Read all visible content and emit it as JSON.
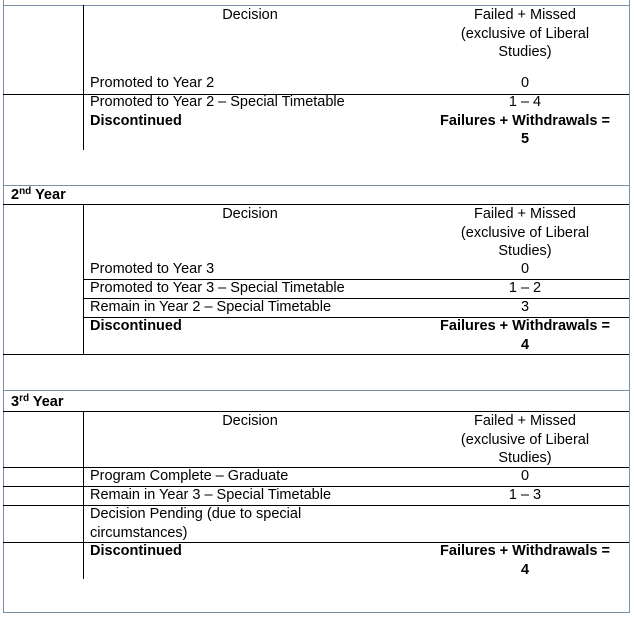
{
  "col_headers": {
    "decision": "Decision",
    "failed_missed": "Failed + Missed (exclusive of Liberal Studies)"
  },
  "year1": {
    "rows": [
      {
        "decision": "Promoted to Year 2",
        "value": "0"
      },
      {
        "decision": "Promoted to Year 2 – Special Timetable",
        "value": "1 – 4"
      }
    ],
    "discontinued": {
      "decision": "Discontinued",
      "value_line1": "Failures + Withdrawals =",
      "value_line2": "5"
    }
  },
  "year2": {
    "title_num": "2",
    "title_sup": "nd",
    "title_rest": " Year",
    "rows": [
      {
        "decision": "Promoted to Year 3",
        "value": "0"
      },
      {
        "decision": "Promoted to Year 3 – Special Timetable",
        "value": "1 – 2"
      },
      {
        "decision": "Remain in Year 2 – Special Timetable",
        "value": "3"
      }
    ],
    "discontinued": {
      "decision": "Discontinued",
      "value_line1": "Failures + Withdrawals =",
      "value_line2": "4"
    }
  },
  "year3": {
    "title_num": "3",
    "title_sup": "rd",
    "title_rest": " Year",
    "rows": [
      {
        "decision": "Program Complete – Graduate",
        "value": "0"
      },
      {
        "decision": "Remain in Year 3 – Special Timetable",
        "value": "1 – 3"
      },
      {
        "decision": "Decision Pending (due to special circumstances)",
        "value": ""
      }
    ],
    "discontinued": {
      "decision": "Discontinued",
      "value_line1": "Failures + Withdrawals =",
      "value_line2": "4"
    }
  }
}
